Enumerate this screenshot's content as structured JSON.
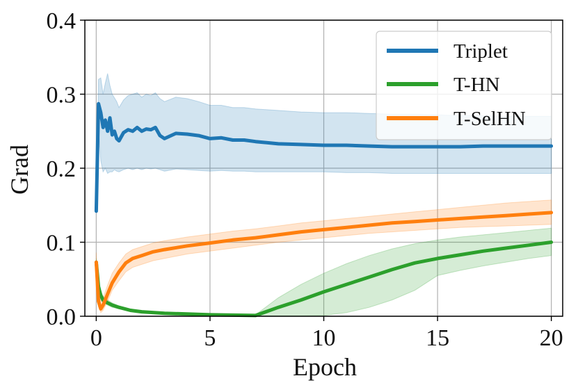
{
  "chart_data": {
    "type": "line",
    "title": "",
    "xlabel": "Epoch",
    "ylabel": "Grad",
    "xlim": [
      -0.5,
      20.5
    ],
    "ylim": [
      0.0,
      0.4
    ],
    "x_ticks": [
      0,
      5,
      10,
      15,
      20
    ],
    "x_tick_labels": [
      "0",
      "5",
      "10",
      "15",
      "20"
    ],
    "y_ticks": [
      0.0,
      0.1,
      0.2,
      0.3,
      0.4
    ],
    "y_tick_labels": [
      "0.0",
      "0.1",
      "0.2",
      "0.3",
      "0.4"
    ],
    "grid": true,
    "legend_position": "top-right",
    "series": [
      {
        "name": "Triplet",
        "color": "#1f77b4",
        "x": [
          0,
          0.1,
          0.2,
          0.3,
          0.4,
          0.5,
          0.6,
          0.7,
          0.8,
          0.9,
          1.0,
          1.2,
          1.4,
          1.6,
          1.8,
          2.0,
          2.2,
          2.4,
          2.6,
          2.8,
          3.0,
          3.5,
          4.0,
          4.5,
          5.0,
          5.5,
          6.0,
          6.5,
          7.0,
          8.0,
          9.0,
          10.0,
          11.0,
          12.0,
          13.0,
          14.0,
          15.0,
          16.0,
          17.0,
          18.0,
          19.0,
          20.0
        ],
        "values": [
          0.142,
          0.287,
          0.275,
          0.255,
          0.265,
          0.25,
          0.268,
          0.245,
          0.25,
          0.24,
          0.237,
          0.248,
          0.252,
          0.25,
          0.255,
          0.25,
          0.253,
          0.252,
          0.255,
          0.244,
          0.24,
          0.247,
          0.246,
          0.244,
          0.24,
          0.241,
          0.238,
          0.238,
          0.236,
          0.233,
          0.232,
          0.231,
          0.231,
          0.23,
          0.229,
          0.229,
          0.229,
          0.229,
          0.23,
          0.23,
          0.23,
          0.23
        ],
        "lower": [
          0.142,
          0.255,
          0.21,
          0.195,
          0.2,
          0.193,
          0.195,
          0.195,
          0.198,
          0.196,
          0.195,
          0.198,
          0.2,
          0.198,
          0.2,
          0.198,
          0.2,
          0.199,
          0.2,
          0.198,
          0.196,
          0.199,
          0.198,
          0.197,
          0.196,
          0.197,
          0.196,
          0.196,
          0.195,
          0.195,
          0.195,
          0.195,
          0.194,
          0.194,
          0.193,
          0.193,
          0.193,
          0.193,
          0.193,
          0.193,
          0.193,
          0.193
        ],
        "upper": [
          0.142,
          0.32,
          0.322,
          0.3,
          0.315,
          0.328,
          0.312,
          0.3,
          0.295,
          0.29,
          0.282,
          0.292,
          0.298,
          0.3,
          0.302,
          0.296,
          0.3,
          0.298,
          0.302,
          0.294,
          0.29,
          0.296,
          0.294,
          0.29,
          0.285,
          0.285,
          0.282,
          0.282,
          0.28,
          0.278,
          0.276,
          0.275,
          0.275,
          0.274,
          0.273,
          0.273,
          0.272,
          0.271,
          0.271,
          0.27,
          0.27,
          0.27
        ]
      },
      {
        "name": "T-HN",
        "color": "#2ca02c",
        "x": [
          0,
          0.1,
          0.2,
          0.3,
          0.5,
          0.7,
          1.0,
          1.5,
          2.0,
          3.0,
          4.0,
          5.0,
          6.0,
          7.0,
          8.0,
          9.0,
          10.0,
          11.0,
          12.0,
          13.0,
          14.0,
          15.0,
          16.0,
          17.0,
          18.0,
          19.0,
          20.0
        ],
        "values": [
          0.073,
          0.04,
          0.028,
          0.022,
          0.018,
          0.015,
          0.012,
          0.008,
          0.006,
          0.004,
          0.003,
          0.002,
          0.0015,
          0.001,
          0.012,
          0.022,
          0.033,
          0.043,
          0.053,
          0.063,
          0.072,
          0.078,
          0.083,
          0.088,
          0.092,
          0.096,
          0.1
        ],
        "lower": [
          0.068,
          0.033,
          0.022,
          0.018,
          0.015,
          0.012,
          0.01,
          0.007,
          0.005,
          0.003,
          0.002,
          0.0015,
          0.001,
          0.0005,
          0.0005,
          0.0005,
          0.001,
          0.005,
          0.012,
          0.022,
          0.035,
          0.055,
          0.062,
          0.068,
          0.073,
          0.078,
          0.082
        ],
        "upper": [
          0.078,
          0.047,
          0.034,
          0.027,
          0.022,
          0.018,
          0.014,
          0.01,
          0.007,
          0.005,
          0.004,
          0.003,
          0.002,
          0.002,
          0.025,
          0.043,
          0.058,
          0.071,
          0.082,
          0.091,
          0.098,
          0.103,
          0.107,
          0.11,
          0.113,
          0.116,
          0.119
        ]
      },
      {
        "name": "T-SelHN",
        "color": "#ff7f0e",
        "x": [
          0,
          0.1,
          0.2,
          0.3,
          0.5,
          0.7,
          1.0,
          1.3,
          1.6,
          2.0,
          2.5,
          3.0,
          4.0,
          5.0,
          6.0,
          7.0,
          8.0,
          9.0,
          10.0,
          11.0,
          12.0,
          13.0,
          14.0,
          15.0,
          16.0,
          17.0,
          18.0,
          19.0,
          20.0
        ],
        "values": [
          0.073,
          0.02,
          0.01,
          0.015,
          0.03,
          0.045,
          0.06,
          0.072,
          0.078,
          0.082,
          0.087,
          0.09,
          0.095,
          0.099,
          0.103,
          0.106,
          0.11,
          0.114,
          0.117,
          0.12,
          0.123,
          0.126,
          0.128,
          0.13,
          0.132,
          0.134,
          0.136,
          0.138,
          0.14
        ],
        "lower": [
          0.06,
          0.013,
          0.005,
          0.008,
          0.02,
          0.035,
          0.048,
          0.06,
          0.066,
          0.07,
          0.075,
          0.078,
          0.084,
          0.088,
          0.092,
          0.096,
          0.1,
          0.103,
          0.106,
          0.109,
          0.112,
          0.114,
          0.116,
          0.118,
          0.12,
          0.121,
          0.122,
          0.123,
          0.124
        ],
        "upper": [
          0.086,
          0.03,
          0.02,
          0.025,
          0.042,
          0.058,
          0.072,
          0.084,
          0.09,
          0.094,
          0.099,
          0.102,
          0.107,
          0.111,
          0.115,
          0.118,
          0.122,
          0.126,
          0.129,
          0.132,
          0.135,
          0.138,
          0.141,
          0.144,
          0.147,
          0.15,
          0.153,
          0.155,
          0.157
        ]
      }
    ]
  }
}
